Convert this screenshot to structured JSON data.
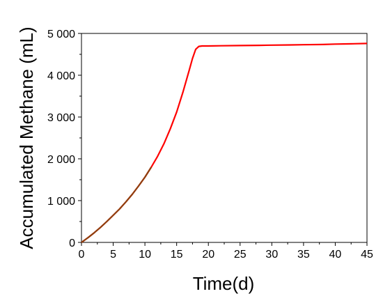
{
  "chart_data": {
    "type": "line",
    "title": "",
    "xlabel": "Time(d)",
    "ylabel": "Accumulated Methane (mL)",
    "xlim": [
      0,
      45
    ],
    "ylim": [
      0,
      5000
    ],
    "x_ticks": [
      0,
      5,
      10,
      15,
      20,
      25,
      30,
      35,
      40,
      45
    ],
    "x_tick_labels": [
      "0",
      "5",
      "10",
      "15",
      "20",
      "25",
      "30",
      "35",
      "40",
      "45"
    ],
    "y_ticks": [
      0,
      1000,
      2000,
      3000,
      4000,
      5000
    ],
    "y_tick_labels": [
      "0",
      "1 000",
      "2 000",
      "3 000",
      "4 000",
      "5 000"
    ],
    "grid": false,
    "legend": "none",
    "series": [
      {
        "color": "#ff0000",
        "x": [
          0,
          1,
          2,
          3,
          4,
          5,
          6,
          7,
          8,
          9,
          10,
          11,
          12,
          13,
          14,
          15,
          16,
          17,
          17.5,
          18,
          18.5,
          19,
          20,
          22,
          25,
          28,
          30,
          33,
          35,
          38,
          40,
          42,
          45
        ],
        "y": [
          0,
          110,
          230,
          360,
          500,
          650,
          800,
          970,
          1150,
          1350,
          1560,
          1800,
          2060,
          2360,
          2720,
          3120,
          3600,
          4130,
          4400,
          4620,
          4690,
          4700,
          4700,
          4705,
          4710,
          4715,
          4720,
          4725,
          4730,
          4735,
          4745,
          4750,
          4760
        ]
      }
    ],
    "early_segment_color": "#7a4a10",
    "early_segment_until_x": 11
  }
}
